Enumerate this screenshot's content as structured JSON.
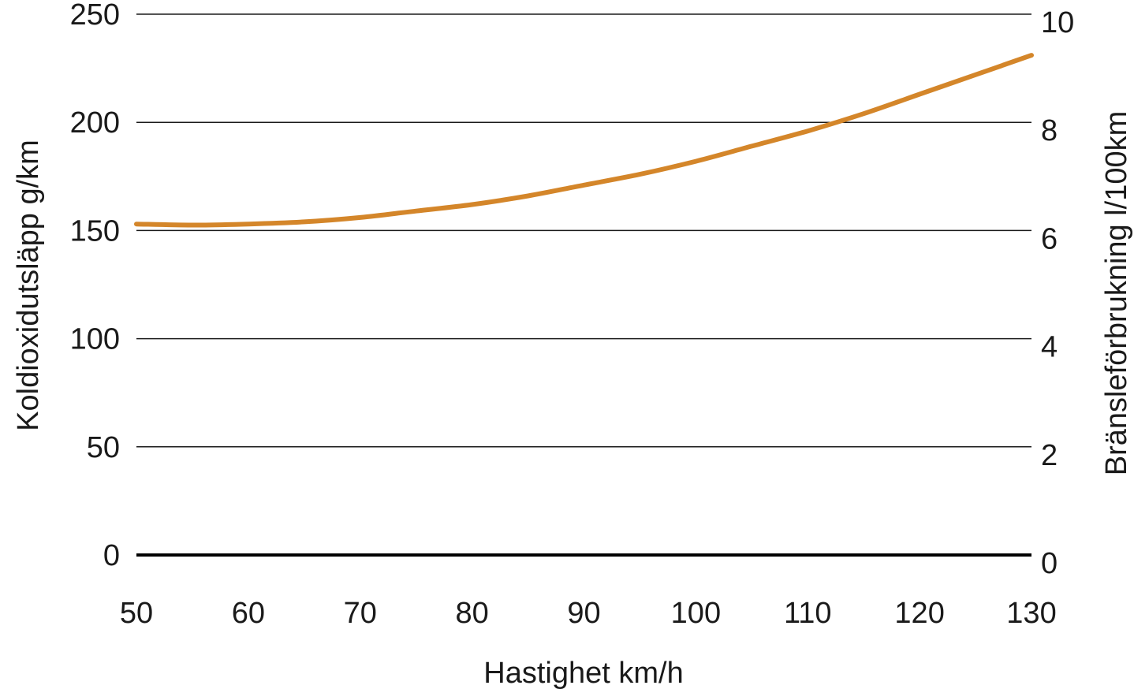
{
  "chart_data": {
    "type": "line",
    "title": "",
    "xlabel": "Hastighet km/h",
    "ylabel_left": "Koldioxidutsläpp g/km",
    "ylabel_right": "Bränsleförbrukning l/100km",
    "xlim": [
      50,
      130
    ],
    "ylim_left": [
      0,
      250
    ],
    "ylim_right": [
      0,
      10
    ],
    "x_ticks": [
      "50",
      "60",
      "70",
      "80",
      "90",
      "100",
      "110",
      "120",
      "130"
    ],
    "y_left_ticks": [
      "0",
      "50",
      "100",
      "150",
      "200",
      "250"
    ],
    "y_right_ticks": [
      "0",
      "2",
      "4",
      "6",
      "8",
      "10"
    ],
    "grid": "horizontal",
    "line_color": "#D4862A",
    "series": [
      {
        "x": [
          50,
          55,
          60,
          65,
          70,
          75,
          80,
          85,
          90,
          95,
          100,
          105,
          110,
          115,
          120,
          125,
          130
        ],
        "values": [
          153,
          152.5,
          153,
          154,
          156,
          159,
          162,
          166,
          171,
          176,
          182,
          189,
          196,
          204,
          213,
          222,
          231
        ]
      }
    ]
  }
}
